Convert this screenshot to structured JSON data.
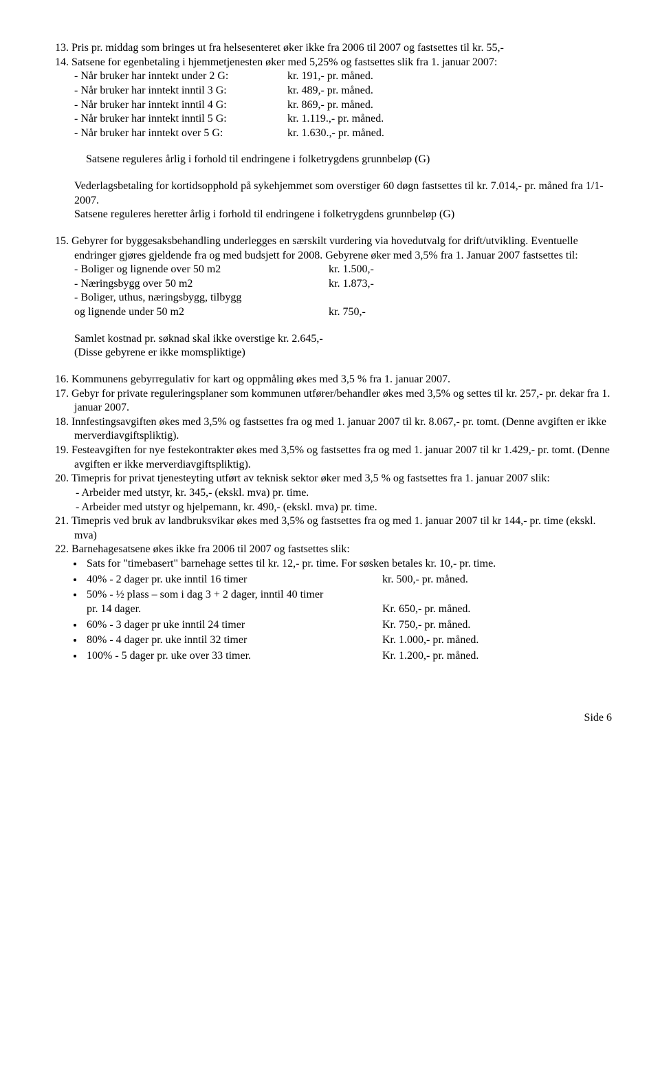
{
  "item13": {
    "text": "13. Pris pr. middag som bringes ut fra helsesenteret øker ikke fra 2006 til 2007 og fastsettes til kr. 55,-"
  },
  "item14": {
    "line1": "14. Satsene for egenbetaling i hjemmetjenesten øker med 5,25% og fastsettes slik fra 1. januar 2007:",
    "rows": [
      {
        "label": "- Når bruker har inntekt under 2 G:",
        "value": "kr.   191,- pr. måned."
      },
      {
        "label": "- Når bruker har inntekt inntil 3 G:",
        "value": "kr.   489,- pr. måned."
      },
      {
        "label": "- Når bruker har inntekt inntil 4 G:",
        "value": "kr.   869,- pr. måned."
      },
      {
        "label": "- Når bruker har inntekt inntil 5 G:",
        "value": "kr. 1.119.,- pr. måned."
      },
      {
        "label": "- Når bruker har inntekt over 5 G:",
        "value": "kr. 1.630.,- pr. måned."
      }
    ],
    "note": "Satsene reguleres årlig i forhold til endringene i folketrygdens grunnbeløp (G)",
    "vederlag1": "Vederlagsbetaling for kortidsopphold på sykehjemmet som overstiger 60 døgn fastsettes til kr. 7.014,- pr. måned fra 1/1-2007.",
    "vederlag2": "Satsene reguleres heretter årlig i forhold til endringene i folketrygdens grunnbeløp (G)"
  },
  "item15": {
    "text": "15. Gebyrer for byggesaksbehandling underlegges en særskilt vurdering via hovedutvalg for drift/utvikling. Eventuelle endringer gjøres gjeldende fra og med budsjett for 2008. Gebyrene øker med 3,5% fra 1. Januar 2007 fastsettes til:",
    "rows": [
      {
        "label": "- Boliger og lignende over 50 m2",
        "value": "kr. 1.500,-"
      },
      {
        "label": "- Næringsbygg over 50 m2",
        "value": "kr. 1.873,-"
      },
      {
        "label": "- Boliger, uthus, næringsbygg, tilbygg",
        "value": ""
      },
      {
        "label": "  og lignende under 50 m2",
        "value": "kr.    750,-"
      }
    ],
    "samlet": "Samlet kostnad pr. søknad skal ikke overstige kr. 2.645,-",
    "disse": "(Disse gebyrene er ikke momspliktige)"
  },
  "item16": "16. Kommunens gebyrregulativ for kart og oppmåling økes med 3,5 % fra 1. januar 2007.",
  "item17": "17. Gebyr for private reguleringsplaner som kommunen utfører/behandler økes med 3,5% og settes til kr. 257,- pr. dekar fra 1. januar 2007.",
  "item18": "18. Innfestingsavgiften økes med 3,5% og fastsettes fra og med 1. januar 2007 til kr. 8.067,- pr. tomt. (Denne avgiften er ikke merverdiavgiftspliktig).",
  "item19": "19. Festeavgiften for nye festekontrakter økes med 3,5% og fastsettes fra og med 1. januar 2007 til kr  1.429,- pr. tomt.    (Denne avgiften er ikke merverdiavgiftspliktig).",
  "item20": {
    "text": "20. Timepris for privat tjenesteyting utført av teknisk sektor øker med 3,5 % og fastsettes fra 1. januar 2007 slik:",
    "sub": [
      "-    Arbeider med utstyr, kr. 345,- (ekskl. mva) pr. time.",
      "-    Arbeider med utstyr og hjelpemann, kr. 490,- (ekskl. mva) pr. time."
    ]
  },
  "item21": "21. Timepris ved bruk av landbruksvikar økes med 3,5% og fastsettes fra og med 1. januar 2007 til kr 144,- pr. time (ekskl. mva)",
  "item22": {
    "text": "22.  Barnehagesatsene økes ikke fra 2006 til 2007 og fastsettes slik:",
    "bullets": [
      {
        "left": "Sats for \"timebasert\" barnehage settes til kr. 12,- pr. time. For søsken betales kr. 10,- pr. time.",
        "right": ""
      },
      {
        "left": "40% - 2 dager pr. uke inntil 16 timer",
        "right": "kr. 500,- pr. måned."
      },
      {
        "left": "50% - ½ plass – som i dag 3 + 2 dager, inntil 40 timer",
        "right": ""
      },
      {
        "left": "pr. 14 dager.",
        "right": "Kr.   650,- pr. måned.",
        "indent": true
      },
      {
        "left": "60% - 3 dager pr uke inntil 24 timer",
        "right": "Kr.   750,- pr. måned."
      },
      {
        "left": "80% - 4 dager pr. uke inntil 32 timer",
        "right": "Kr. 1.000,- pr. måned."
      },
      {
        "left": "100% - 5 dager pr. uke over 33 timer.",
        "right": "Kr. 1.200,- pr. måned."
      }
    ]
  },
  "footer": "Side 6"
}
